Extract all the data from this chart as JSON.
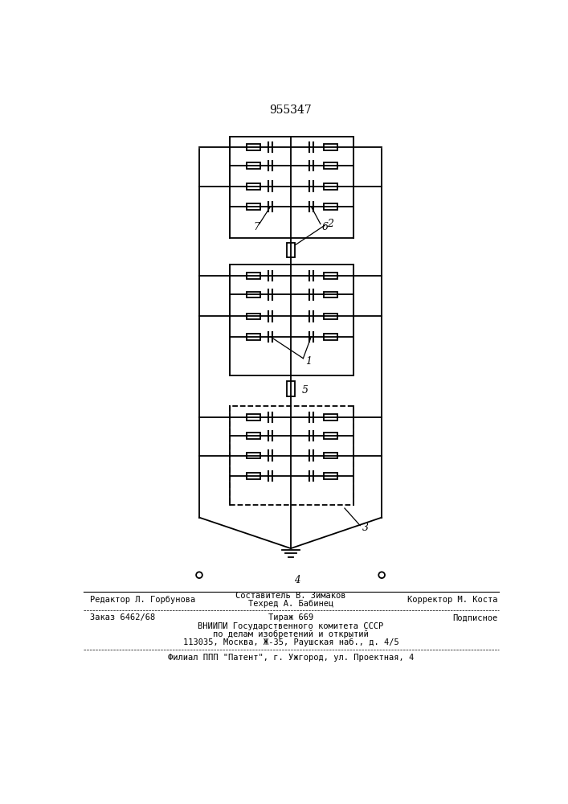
{
  "title": "955347",
  "title_fontsize": 10,
  "background_color": "#ffffff",
  "lw": 1.3,
  "fig_width": 7.07,
  "fig_height": 10.0,
  "footer_lines": [
    {
      "left": "Редактор Л. Горбунова",
      "center_top": "Составитель В. Зимаков",
      "center_bot": "Техред А. Бабинец",
      "right": "Корректор М. Коста"
    },
    {
      "left": "Заказ 6462/68",
      "center": "Тираж 669",
      "right": "Подписное"
    },
    {
      "center": "ВНИИПИ Государственного комитета СССР"
    },
    {
      "center": "по делам изобретений и открытий"
    },
    {
      "center": "113035, Москва, Ж-35, Раушская наб., д. 4/5"
    },
    {
      "center": "Филиал ППП \"Патент\", г. Ужгород, ул. Проектная, 4"
    }
  ]
}
